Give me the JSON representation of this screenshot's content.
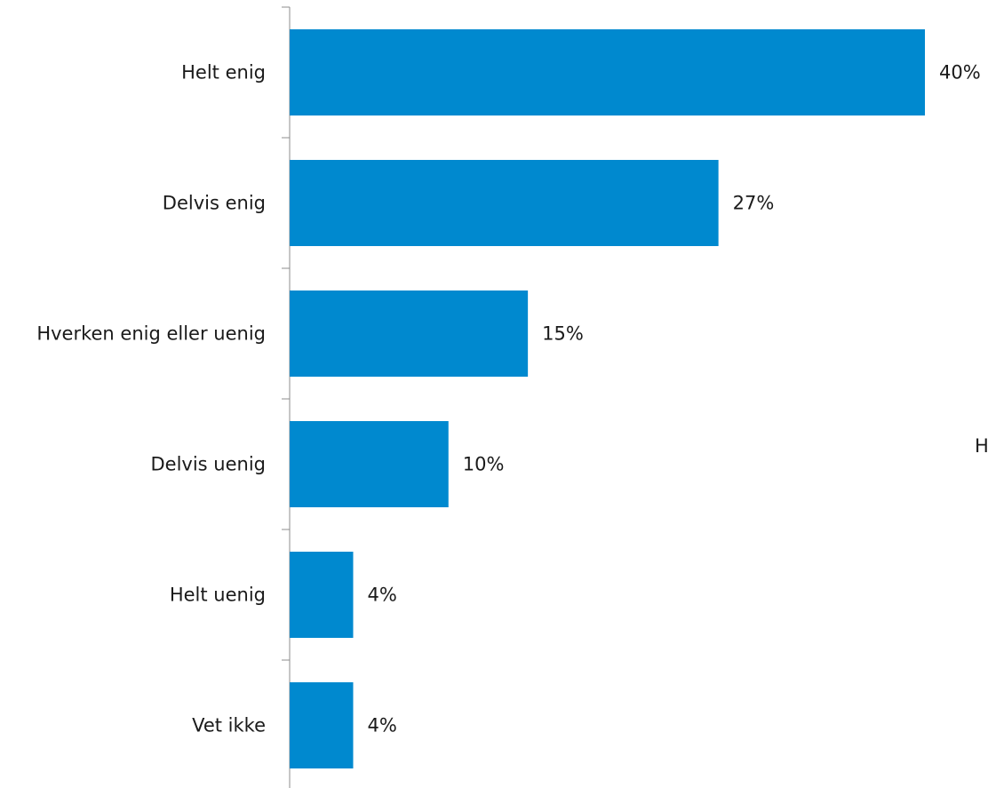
{
  "chart_data": {
    "type": "bar",
    "orientation": "horizontal",
    "categories": [
      "Helt enig",
      "Delvis enig",
      "Hverken enig eller uenig",
      "Delvis uenig",
      "Helt uenig",
      "Vet ikke"
    ],
    "values": [
      40,
      27,
      15,
      10,
      4,
      4
    ],
    "value_labels": [
      "40%",
      "27%",
      "15%",
      "10%",
      "4%",
      "4%"
    ],
    "unit": "%",
    "xlim": [
      0,
      40
    ],
    "grid": false,
    "color": "#0089CF"
  },
  "overflow_text": "H"
}
